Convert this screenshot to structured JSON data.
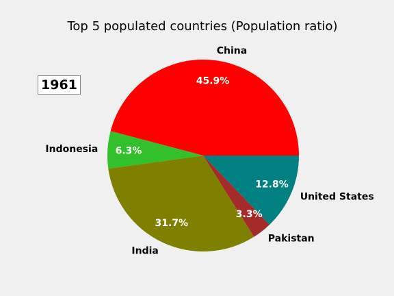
{
  "chart_data": {
    "type": "pie",
    "title": "Top 5 populated countries (Population ratio)",
    "year": "1961",
    "start_angle_deg": 0,
    "direction": "counterclockwise",
    "slices": [
      {
        "label": "China",
        "value": 45.9,
        "value_label": "45.9%",
        "color": "#ff0000"
      },
      {
        "label": "Indonesia",
        "value": 6.3,
        "value_label": "6.3%",
        "color": "#33c12b"
      },
      {
        "label": "India",
        "value": 31.7,
        "value_label": "31.7%",
        "color": "#808000"
      },
      {
        "label": "Pakistan",
        "value": 3.3,
        "value_label": "3.3%",
        "color": "#a52a2a"
      },
      {
        "label": "United States",
        "value": 12.8,
        "value_label": "12.8%",
        "color": "#008080"
      }
    ],
    "legend": "none"
  }
}
